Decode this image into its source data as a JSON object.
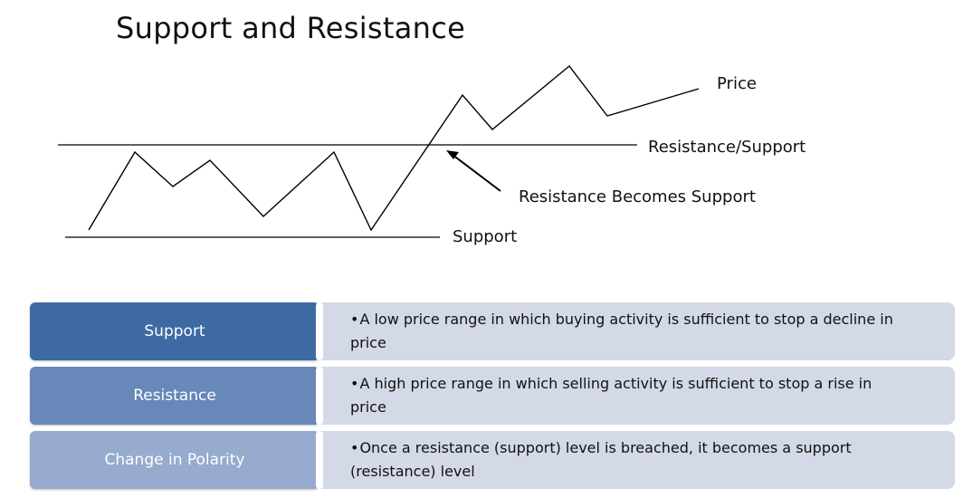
{
  "title": "Support and Resistance",
  "diagram": {
    "labels": {
      "price": "Price",
      "resistance_support": "Resistance/Support",
      "resistance_becomes_support": "Resistance Becomes Support",
      "support": "Support"
    }
  },
  "table": {
    "rows": [
      {
        "term": "Support",
        "bullet": "•",
        "description": "A low price range in which buying activity is sufficient to stop a decline in price"
      },
      {
        "term": "Resistance",
        "bullet": "•",
        "description": "A high price range in which selling activity is sufficient to stop a rise in price"
      },
      {
        "term": "Change in Polarity",
        "bullet": "•",
        "description": "Once a resistance (support) level is breached, it becomes a support (resistance) level"
      }
    ]
  }
}
